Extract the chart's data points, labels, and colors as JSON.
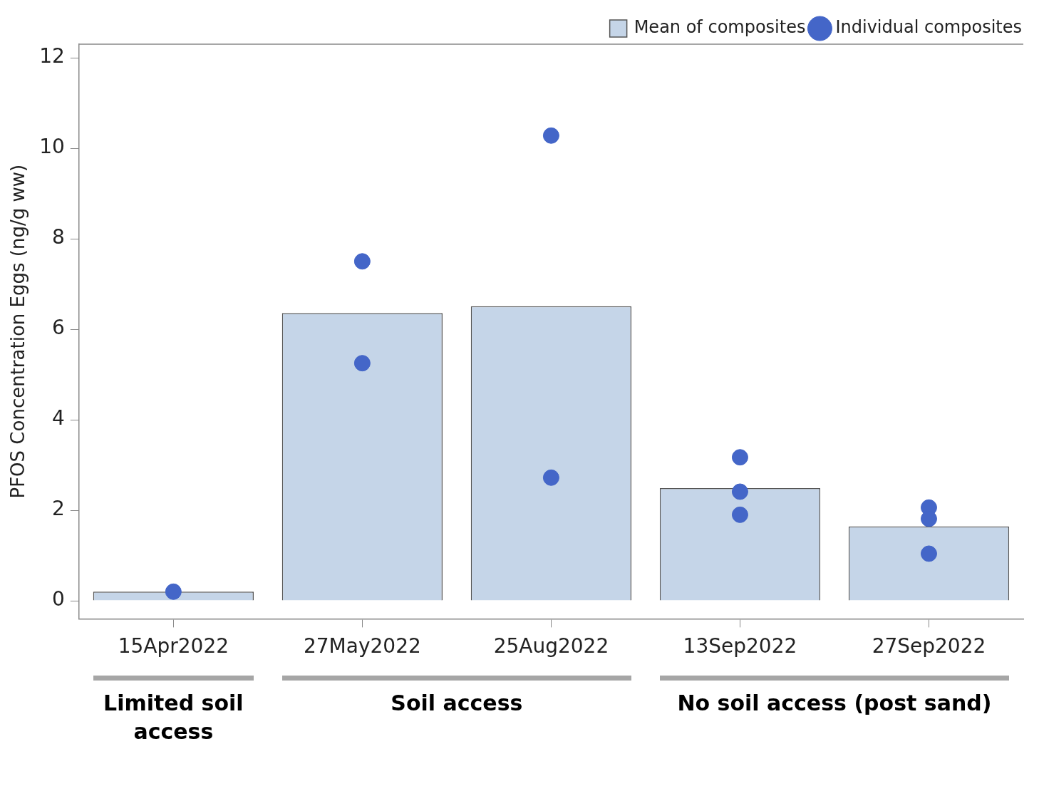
{
  "chart_data": {
    "type": "bar",
    "ylabel": "PFOS Concentration Eggs (ng/g ww)",
    "categories": [
      "15Apr2022",
      "27May2022",
      "25Aug2022",
      "13Sep2022",
      "27Sep2022"
    ],
    "series": [
      {
        "name": "Mean of composites",
        "type": "bar",
        "color": "#c5d5e8",
        "values": [
          0.2,
          6.36,
          6.51,
          2.49,
          1.64
        ]
      },
      {
        "name": "Individual composites",
        "type": "scatter",
        "color": "#4466c8",
        "x": [
          "15Apr2022",
          "27May2022",
          "27May2022",
          "25Aug2022",
          "25Aug2022",
          "13Sep2022",
          "13Sep2022",
          "13Sep2022",
          "27Sep2022",
          "27Sep2022",
          "27Sep2022"
        ],
        "values": [
          0.2,
          7.5,
          5.25,
          10.28,
          2.72,
          3.17,
          2.41,
          1.9,
          2.06,
          1.81,
          1.04
        ]
      }
    ],
    "ylim": [
      -0.4,
      12.3
    ],
    "yticks": [
      0,
      2,
      4,
      6,
      8,
      10,
      12
    ],
    "grid": false,
    "legend": "top right",
    "marker": "circle",
    "annotations": [
      "Limited soil access",
      "Soil access",
      "No soil access (post sand)"
    ]
  }
}
